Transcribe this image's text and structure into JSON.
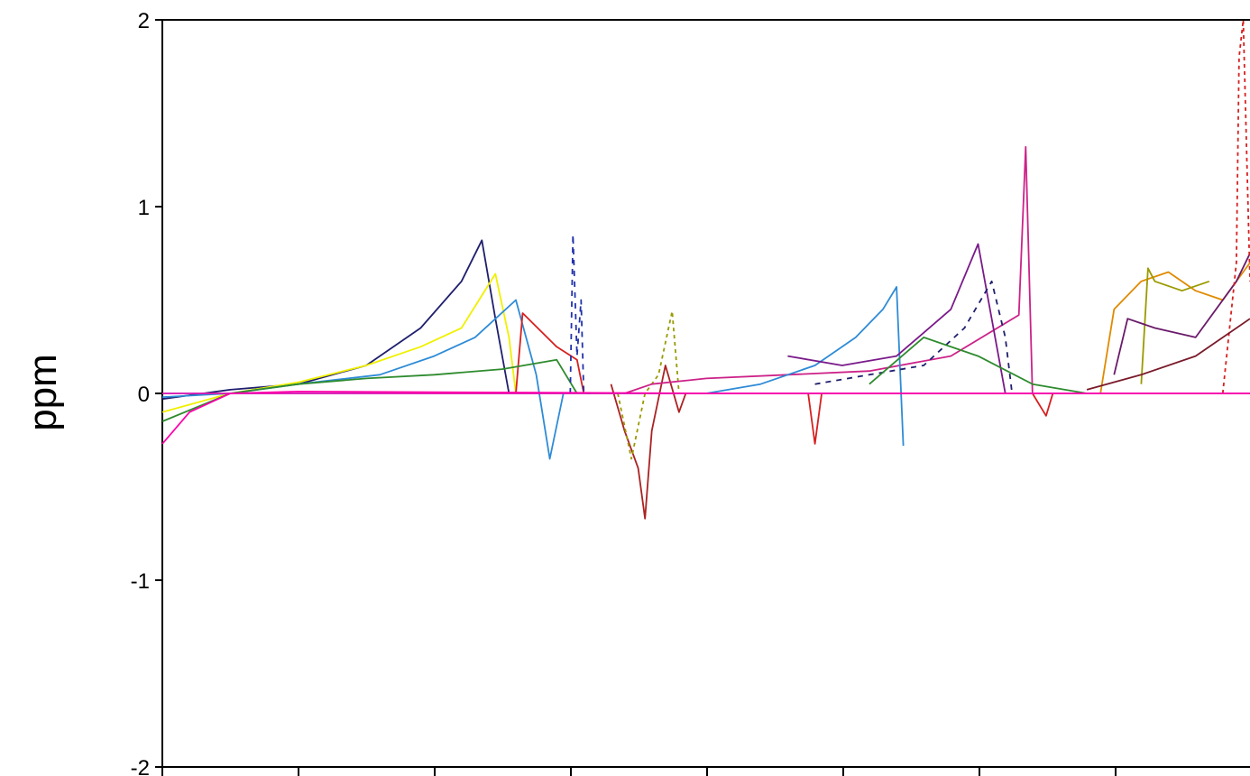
{
  "chart_data": {
    "type": "line",
    "title": "",
    "xlabel": "",
    "ylabel": "ppm",
    "ylim": [
      -2,
      2
    ],
    "yticks": [
      2,
      1,
      0,
      -1,
      -2
    ],
    "ytick_labels": [
      "2",
      "1",
      "0",
      "-1",
      "-2"
    ],
    "xlim": [
      0,
      8
    ],
    "grid": false,
    "legend": "none",
    "series": [
      {
        "color": "#1f1f6e",
        "dash": "",
        "x": [
          0.0,
          0.3,
          0.5,
          1.0,
          1.5,
          1.9,
          2.2,
          2.35,
          2.45,
          2.55
        ],
        "y": [
          -0.03,
          0.0,
          0.02,
          0.05,
          0.15,
          0.35,
          0.6,
          0.82,
          0.4,
          0.0
        ]
      },
      {
        "color": "#f0f000",
        "dash": "",
        "x": [
          0.0,
          0.5,
          1.0,
          1.5,
          1.9,
          2.2,
          2.45,
          2.55,
          2.6
        ],
        "y": [
          -0.1,
          0.0,
          0.06,
          0.15,
          0.25,
          0.35,
          0.64,
          0.3,
          0.0
        ]
      },
      {
        "color": "#2e8bd6",
        "dash": "",
        "x": [
          0.0,
          0.5,
          1.0,
          1.6,
          2.0,
          2.3,
          2.6,
          2.75,
          2.85,
          2.95
        ],
        "y": [
          -0.02,
          0.0,
          0.05,
          0.1,
          0.2,
          0.3,
          0.5,
          0.1,
          -0.35,
          0.0
        ]
      },
      {
        "color": "#d62020",
        "dash": "",
        "x": [
          2.6,
          2.65,
          2.9,
          3.05,
          3.1
        ],
        "y": [
          0.0,
          0.43,
          0.25,
          0.18,
          0.0
        ]
      },
      {
        "color": "#2e8b2e",
        "dash": "",
        "x": [
          0.0,
          0.5,
          1.0,
          1.5,
          2.0,
          2.5,
          2.9,
          3.05
        ],
        "y": [
          -0.15,
          0.0,
          0.05,
          0.08,
          0.1,
          0.13,
          0.18,
          0.0
        ]
      },
      {
        "color": "#2233aa",
        "dash": "6,6",
        "x": [
          3.0,
          3.02,
          3.05,
          3.08,
          3.1,
          3.15
        ],
        "y": [
          0.0,
          0.85,
          0.2,
          0.5,
          0.0,
          0.0
        ]
      },
      {
        "color": "#aa2222",
        "dash": "",
        "x": [
          3.3,
          3.4,
          3.5,
          3.55,
          3.6,
          3.7,
          3.8,
          3.85
        ],
        "y": [
          0.05,
          -0.2,
          -0.4,
          -0.67,
          -0.2,
          0.15,
          -0.1,
          0.0
        ]
      },
      {
        "color": "#999900",
        "dash": "4,4",
        "x": [
          3.35,
          3.45,
          3.55,
          3.65,
          3.75,
          3.8
        ],
        "y": [
          0.0,
          -0.35,
          0.0,
          0.1,
          0.44,
          0.0
        ]
      },
      {
        "color": "#cc2288",
        "dash": "",
        "x": [
          3.4,
          3.6,
          4.0,
          4.6,
          5.2,
          5.8,
          6.3,
          6.35,
          6.4
        ],
        "y": [
          0.0,
          0.05,
          0.08,
          0.1,
          0.12,
          0.2,
          0.42,
          1.32,
          0.0
        ]
      },
      {
        "color": "#2e8bd6",
        "dash": "",
        "x": [
          4.0,
          4.4,
          4.8,
          5.1,
          5.3,
          5.4,
          5.45
        ],
        "y": [
          0.0,
          0.05,
          0.15,
          0.3,
          0.45,
          0.57,
          -0.28
        ]
      },
      {
        "color": "#7a1a8a",
        "dash": "",
        "x": [
          4.6,
          5.0,
          5.4,
          5.8,
          6.0,
          6.1,
          6.2
        ],
        "y": [
          0.2,
          0.15,
          0.2,
          0.45,
          0.8,
          0.4,
          0.0
        ]
      },
      {
        "color": "#1f1f6e",
        "dash": "6,6",
        "x": [
          4.8,
          5.2,
          5.6,
          5.9,
          6.1,
          6.2,
          6.25
        ],
        "y": [
          0.05,
          0.1,
          0.15,
          0.35,
          0.6,
          0.3,
          0.0
        ]
      },
      {
        "color": "#d62020",
        "dash": "",
        "x": [
          4.75,
          4.8,
          4.85,
          4.9
        ],
        "y": [
          0.0,
          -0.27,
          0.0,
          0.0
        ]
      },
      {
        "color": "#2e8b2e",
        "dash": "",
        "x": [
          5.2,
          5.6,
          6.0,
          6.4,
          6.8
        ],
        "y": [
          0.05,
          0.3,
          0.2,
          0.05,
          0.0
        ]
      },
      {
        "color": "#d62020",
        "dash": "",
        "x": [
          6.4,
          6.5,
          6.55,
          6.6
        ],
        "y": [
          0.0,
          -0.12,
          0.0,
          0.0
        ]
      },
      {
        "color": "#e08a00",
        "dash": "",
        "x": [
          6.9,
          7.0,
          7.2,
          7.4,
          7.6,
          7.8,
          8.0
        ],
        "y": [
          0.0,
          0.45,
          0.6,
          0.65,
          0.55,
          0.5,
          0.7
        ]
      },
      {
        "color": "#9a9a00",
        "dash": "",
        "x": [
          7.2,
          7.25,
          7.3,
          7.5,
          7.7
        ],
        "y": [
          0.05,
          0.67,
          0.6,
          0.55,
          0.6
        ]
      },
      {
        "color": "#6a1a6a",
        "dash": "",
        "x": [
          7.0,
          7.1,
          7.3,
          7.6,
          7.9,
          8.0
        ],
        "y": [
          0.1,
          0.4,
          0.35,
          0.3,
          0.6,
          0.75
        ]
      },
      {
        "color": "#d62020",
        "dash": "4,4",
        "x": [
          7.8,
          7.9,
          7.92,
          7.95,
          8.0
        ],
        "y": [
          0.0,
          0.7,
          1.8,
          2.0,
          0.6
        ]
      },
      {
        "color": "#7a1a2a",
        "dash": "",
        "x": [
          6.8,
          7.2,
          7.6,
          8.0
        ],
        "y": [
          0.02,
          0.1,
          0.2,
          0.4
        ]
      },
      {
        "color": "#2e8bd6",
        "dash": "",
        "x": [
          0.0,
          4.0,
          8.0
        ],
        "y": [
          0.0,
          0.0,
          0.0
        ]
      },
      {
        "color": "#ff00aa",
        "dash": "",
        "x": [
          0.0,
          0.2,
          0.5,
          1.0,
          4.0,
          8.0
        ],
        "y": [
          -0.27,
          -0.1,
          0.0,
          0.01,
          0.0,
          0.0
        ]
      }
    ]
  }
}
